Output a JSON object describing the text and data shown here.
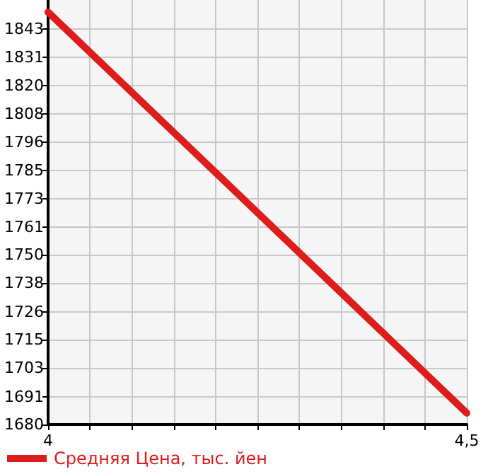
{
  "chart_data": {
    "type": "line",
    "x": [
      4,
      4.5
    ],
    "series": [
      {
        "name": "Средняя Цена, тыс. йен",
        "color": "#dd1c1c",
        "values": [
          1850,
          1684.7
        ]
      }
    ],
    "xlim": [
      4,
      4.5
    ],
    "xticks": [
      4,
      {
        "value": 4.05,
        "label": null
      },
      {
        "value": 4.1,
        "label": null
      },
      {
        "value": 4.15,
        "label": null
      },
      {
        "value": 4.2,
        "label": null
      },
      {
        "value": 4.25,
        "label": null
      },
      {
        "value": 4.3,
        "label": null
      },
      {
        "value": 4.35,
        "label": null
      },
      {
        "value": 4.4,
        "label": null
      },
      {
        "value": 4.45,
        "label": null
      },
      {
        "value": 4.5,
        "label": "4,5"
      }
    ],
    "ylim": [
      1680,
      1855
    ],
    "yticks": [
      1680,
      {
        "value": 1691.4,
        "label": "1691"
      },
      {
        "value": 1703.29,
        "label": "1703"
      },
      {
        "value": 1714.93,
        "label": "1715"
      },
      {
        "value": 1726.4,
        "label": "1726"
      },
      {
        "value": 1738.21,
        "label": "1738"
      },
      {
        "value": 1749.86,
        "label": "1750"
      },
      {
        "value": 1761.5,
        "label": "1761"
      },
      {
        "value": 1773.14,
        "label": "1773"
      },
      {
        "value": 1784.79,
        "label": "1785"
      },
      {
        "value": 1796.43,
        "label": "1796"
      },
      {
        "value": 1808.07,
        "label": "1808"
      },
      {
        "value": 1819.71,
        "label": "1820"
      },
      {
        "value": 1831.36,
        "label": "1831"
      },
      1843
    ],
    "grid": true,
    "legend": "bottom left",
    "marker": "none",
    "line_style": "solid"
  }
}
